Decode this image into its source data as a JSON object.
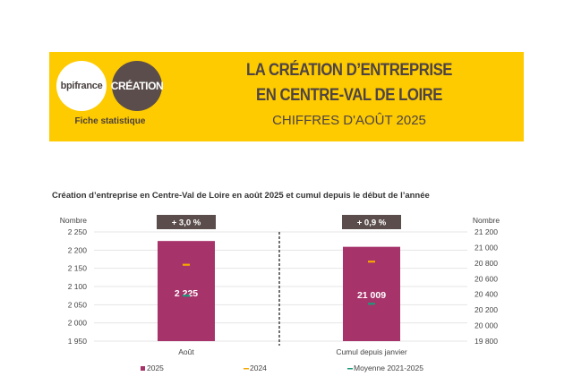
{
  "header": {
    "logo_left": "bpifrance",
    "logo_right": "CRÉATION",
    "subtitle_left": "Fiche statistique",
    "title_line1": "LA CRÉATION D’ENTREPRISE",
    "title_line2": "EN CENTRE-VAL DE LOIRE",
    "title_line3": "CHIFFRES D'AOÛT 2025",
    "background_color": "#fecb00"
  },
  "chart_data": {
    "type": "bar",
    "title": "Création d’entreprise en Centre-Val de Loire en août 2025 et cumul depuis le début de l’année",
    "categories": [
      "Août",
      "Cumul depuis janvier"
    ],
    "left_axis": {
      "label": "Nombre",
      "ylim": [
        1950,
        2250
      ],
      "ticks": [
        "1 950",
        "2 000",
        "2 050",
        "2 100",
        "2 150",
        "2 200",
        "2 250"
      ]
    },
    "right_axis": {
      "label": "Nombre",
      "ylim": [
        19800,
        21200
      ],
      "ticks": [
        "19 800",
        "20 000",
        "20 200",
        "20 400",
        "20 600",
        "20 800",
        "21 000",
        "21 200"
      ]
    },
    "series": [
      {
        "name": "2025",
        "type": "bar",
        "color": "#a6336a",
        "values": [
          2225,
          21009
        ],
        "labels": [
          "2 225",
          "21 009"
        ]
      },
      {
        "name": "2024",
        "type": "marker",
        "color": "#f5a800",
        "values": [
          2160,
          20820
        ]
      },
      {
        "name": "Moyenne 2021-2025",
        "type": "marker",
        "color": "#1a9a7a",
        "values": [
          2075,
          20280
        ]
      }
    ],
    "variations": [
      "+ 3,0 %",
      "+ 0,9 %"
    ],
    "legend_position": "bottom",
    "grid": true
  }
}
